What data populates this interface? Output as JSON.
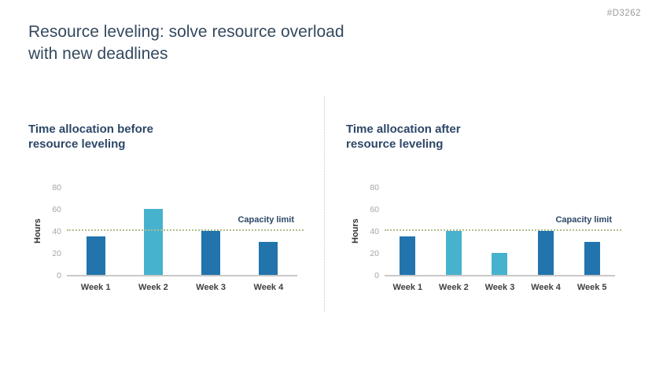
{
  "page": {
    "ref_code": "#D3262",
    "title_line1": "Resource leveling: solve resource overload",
    "title_line2": "with new deadlines"
  },
  "panels": [
    {
      "title_line1": "Time allocation before",
      "title_line2": "resource leveling"
    },
    {
      "title_line1": "Time allocation after",
      "title_line2": "resource leveling"
    }
  ],
  "colors": {
    "title_text": "#34495E",
    "heading_text": "#2D4768",
    "bar_dark": "#2274AD",
    "bar_light": "#47B2CE",
    "capacity_line": "#AEBF8D",
    "capacity_label": "#2D4768",
    "axis_line": "#C9C9C9",
    "tick_label": "#A6A6A6",
    "week_label": "#3F3F3F",
    "ref_code": "#9B9B9B"
  },
  "chart_data": [
    {
      "type": "bar",
      "title": "Time allocation before resource leveling",
      "xlabel": "",
      "ylabel": "Hours",
      "categories": [
        "Week 1",
        "Week 2",
        "Week 3",
        "Week 4"
      ],
      "values": [
        35,
        60,
        40,
        30
      ],
      "bar_colors": [
        "#2274AD",
        "#47B2CE",
        "#2274AD",
        "#2274AD"
      ],
      "yticks": [
        0,
        20,
        40,
        60,
        80
      ],
      "ylim": [
        0,
        80
      ],
      "grid": false,
      "legend": false,
      "capacity_limit": {
        "value": 40,
        "label": "Capacity limit"
      }
    },
    {
      "type": "bar",
      "title": "Time allocation after resource leveling",
      "xlabel": "",
      "ylabel": "Hours",
      "categories": [
        "Week 1",
        "Week 2",
        "Week 3",
        "Week 4",
        "Week 5"
      ],
      "values": [
        35,
        40,
        20,
        40,
        30
      ],
      "bar_colors": [
        "#2274AD",
        "#47B2CE",
        "#47B2CE",
        "#2274AD",
        "#2274AD"
      ],
      "yticks": [
        0,
        20,
        40,
        60,
        80
      ],
      "ylim": [
        0,
        80
      ],
      "grid": false,
      "legend": false,
      "capacity_limit": {
        "value": 40,
        "label": "Capacity limit"
      }
    }
  ]
}
